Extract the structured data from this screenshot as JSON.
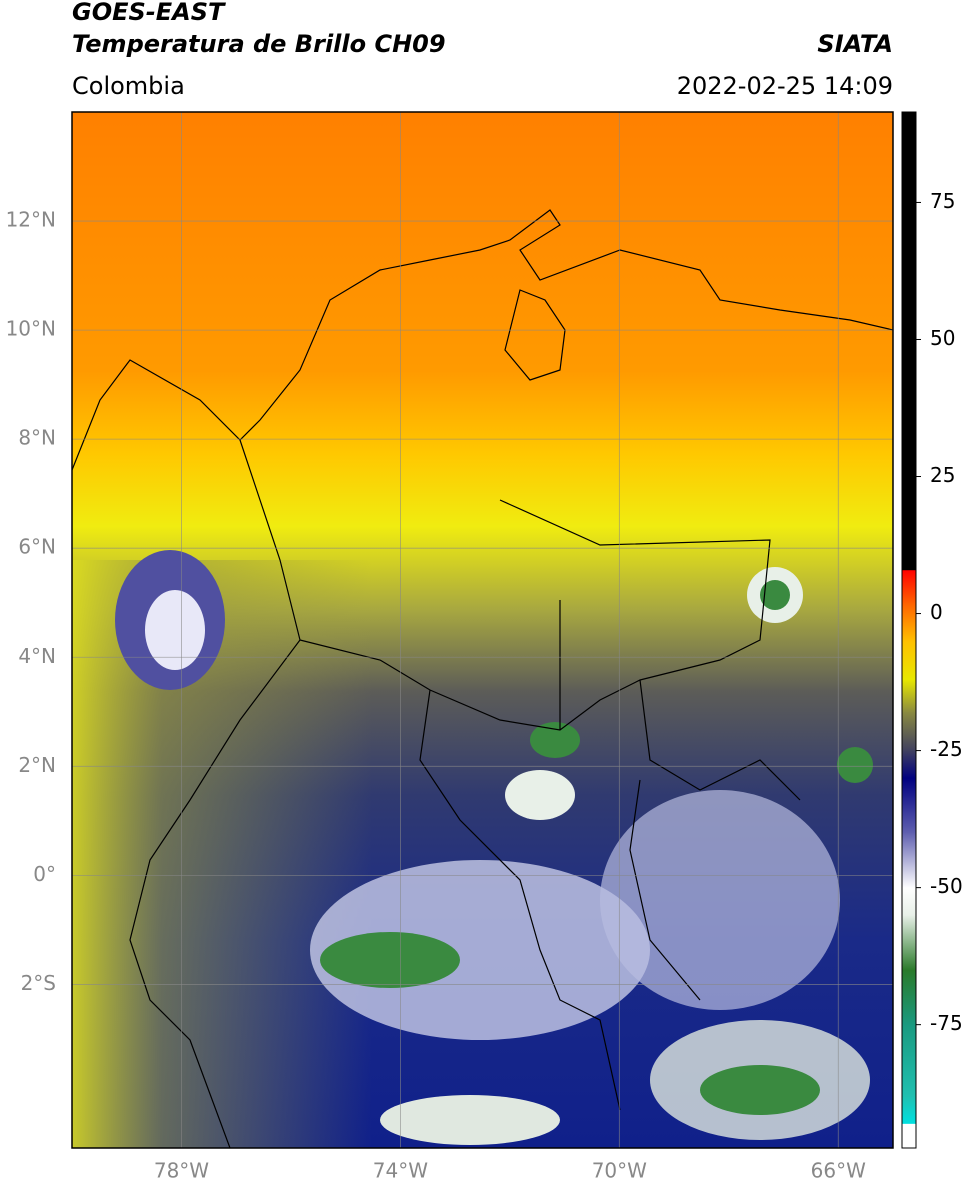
{
  "header": {
    "title_line1": "GOES-EAST",
    "title_line2": "Temperatura de Brillo CH09",
    "source": "SIATA",
    "region": "Colombia",
    "datetime": "2022-02-25 14:09"
  },
  "map": {
    "xlim": [
      -80,
      -65
    ],
    "ylim": [
      -5,
      14
    ],
    "xticks": [
      {
        "value": -78,
        "label": "78°W"
      },
      {
        "value": -74,
        "label": "74°W"
      },
      {
        "value": -70,
        "label": "70°W"
      },
      {
        "value": -66,
        "label": "66°W"
      }
    ],
    "yticks": [
      {
        "value": 12,
        "label": "12°N"
      },
      {
        "value": 10,
        "label": "10°N"
      },
      {
        "value": 8,
        "label": "8°N"
      },
      {
        "value": 6,
        "label": "6°N"
      },
      {
        "value": 4,
        "label": "4°N"
      },
      {
        "value": 2,
        "label": "2°N"
      },
      {
        "value": 0,
        "label": "0°"
      },
      {
        "value": -2,
        "label": "2°S"
      }
    ],
    "grid": true
  },
  "colorbar": {
    "lim": [
      -97.5,
      91.5
    ],
    "ticks": [
      75,
      50,
      25,
      0,
      -25,
      -50,
      -75
    ],
    "stops": [
      {
        "value": -97.5,
        "color": "#ffffff"
      },
      {
        "value": -93,
        "color": "#ffffff"
      },
      {
        "value": -93,
        "color": "#00e0e0"
      },
      {
        "value": -88,
        "color": "#20c0b0"
      },
      {
        "value": -75,
        "color": "#1a9a80"
      },
      {
        "value": -65,
        "color": "#2a7a2a"
      },
      {
        "value": -55,
        "color": "#e8f0e8"
      },
      {
        "value": -50,
        "color": "#ffffff"
      },
      {
        "value": -40,
        "color": "#6060b0"
      },
      {
        "value": -30,
        "color": "#000080"
      },
      {
        "value": -25,
        "color": "#404060"
      },
      {
        "value": -18,
        "color": "#8a8a40"
      },
      {
        "value": -12,
        "color": "#e8e800"
      },
      {
        "value": -5,
        "color": "#ffc000"
      },
      {
        "value": 2,
        "color": "#ff6000"
      },
      {
        "value": 8,
        "color": "#ff0000"
      },
      {
        "value": 8,
        "color": "#000000"
      },
      {
        "value": 91.5,
        "color": "#000000"
      }
    ]
  }
}
